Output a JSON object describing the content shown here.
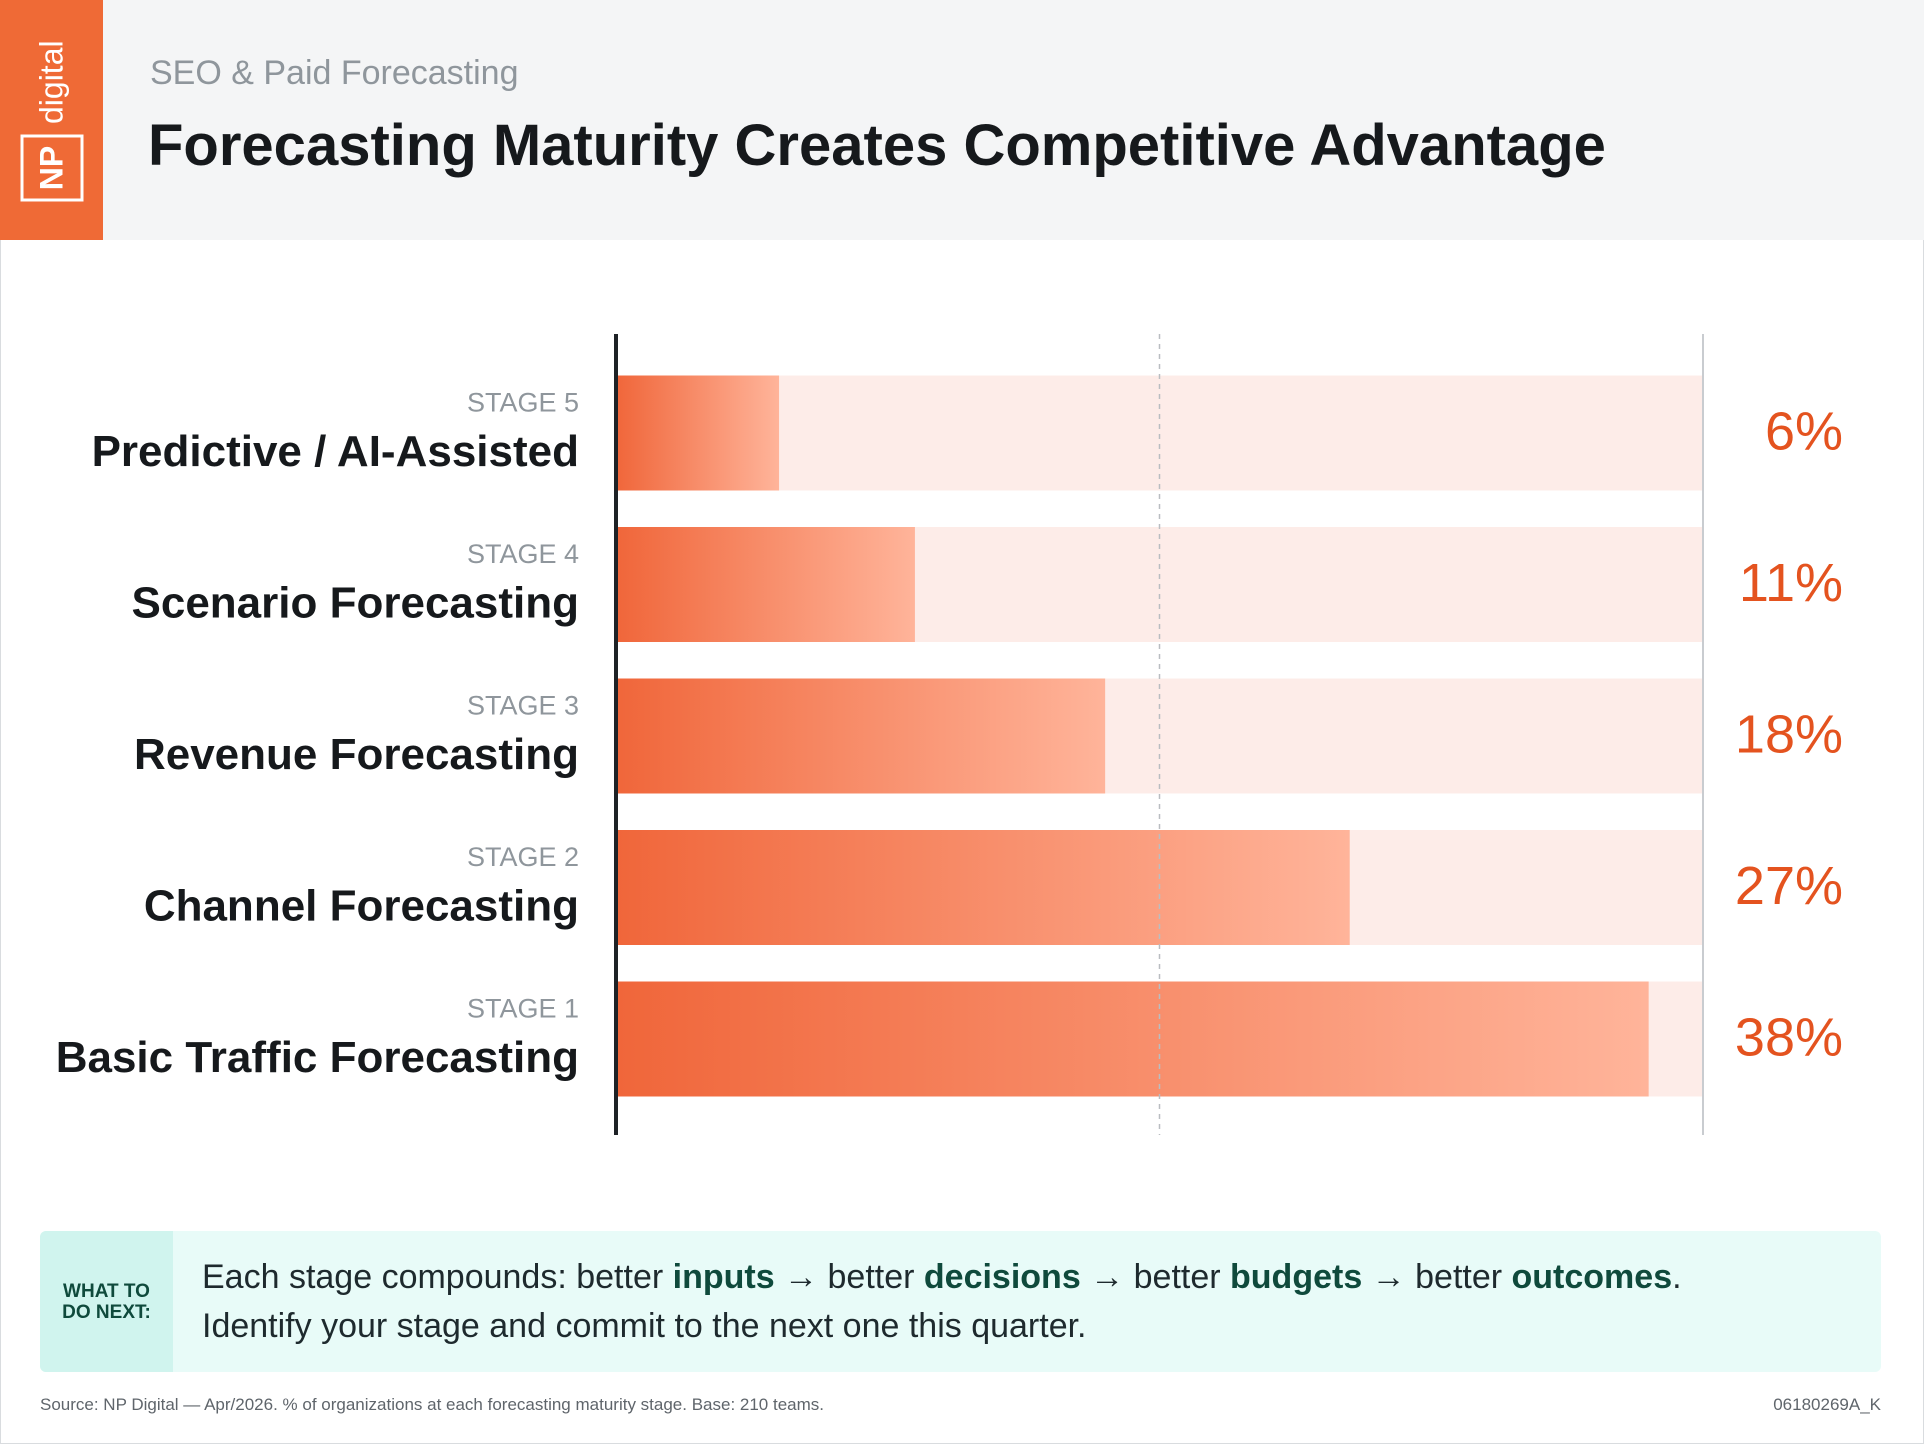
{
  "logo": {
    "mark": "NP",
    "word": "digital"
  },
  "chart_data": {
    "type": "bar",
    "orientation": "horizontal",
    "supertitle": "SEO & Paid Forecasting",
    "title": "Forecasting Maturity Creates Competitive Advantage",
    "stages": [
      "STAGE 5",
      "STAGE 4",
      "STAGE 3",
      "STAGE 2",
      "STAGE 1"
    ],
    "categories": [
      "Predictive / AI-Assisted",
      "Scenario Forecasting",
      "Revenue Forecasting",
      "Channel Forecasting",
      "Basic Traffic Forecasting"
    ],
    "values": [
      6,
      11,
      18,
      27,
      38
    ],
    "value_labels": [
      "6%",
      "11%",
      "18%",
      "27%",
      "38%"
    ],
    "xlim": [
      0,
      40
    ],
    "grid_values": [
      20
    ],
    "color": "#f0663a",
    "gradient_end": "#ffb49a",
    "track_color": "#fdece8",
    "label_color": "#e4531f"
  },
  "note": {
    "label": "WHAT TO DO NEXT:",
    "lines": [
      [
        {
          "text": "Each stage compounds: better ",
          "bold": false
        },
        {
          "text": "inputs",
          "bold": true
        },
        {
          "text": " → better ",
          "bold": false
        },
        {
          "text": "decisions",
          "bold": true
        },
        {
          "text": " → better ",
          "bold": false
        },
        {
          "text": "budgets",
          "bold": true
        },
        {
          "text": " → better ",
          "bold": false
        },
        {
          "text": "outcomes",
          "bold": true
        },
        {
          "text": ".",
          "bold": false
        }
      ],
      [
        {
          "text": "Identify your stage and commit to the next one this quarter.",
          "bold": false
        }
      ]
    ]
  },
  "footer": {
    "source": "Source: NP Digital — Apr/2026. % of organizations at each forecasting maturity stage. Base: 210 teams.",
    "code": "06180269A_K"
  }
}
